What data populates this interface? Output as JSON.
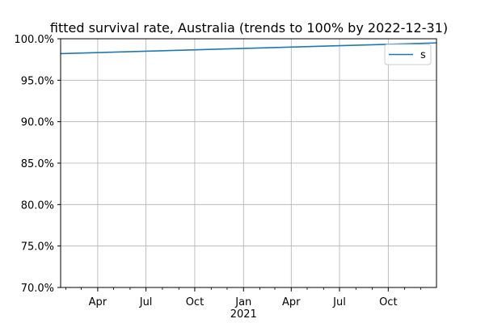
{
  "chart_data": {
    "type": "line",
    "title": "fitted survival rate, Australia (trends to 100% by 2022-12-31)",
    "xlabel": "",
    "ylabel": "",
    "x_range": [
      "2020-01-22",
      "2021-12-31"
    ],
    "ylim": [
      70.0,
      100.0
    ],
    "y_ticks": [
      70.0,
      75.0,
      80.0,
      85.0,
      90.0,
      95.0,
      100.0
    ],
    "y_tick_labels": [
      "70.0%",
      "75.0%",
      "80.0%",
      "85.0%",
      "90.0%",
      "95.0%",
      "100.0%"
    ],
    "x_major_ticks": [
      {
        "date": "2020-04-01",
        "label": "Apr"
      },
      {
        "date": "2020-07-01",
        "label": "Jul"
      },
      {
        "date": "2020-10-01",
        "label": "Oct"
      },
      {
        "date": "2021-01-01",
        "label": "Jan"
      },
      {
        "date": "2021-04-01",
        "label": "Apr"
      },
      {
        "date": "2021-07-01",
        "label": "Jul"
      },
      {
        "date": "2021-10-01",
        "label": "Oct"
      }
    ],
    "x_year_label": {
      "date": "2021-01-01",
      "label": "2021"
    },
    "x_minor_ticks": [
      "2020-02-01",
      "2020-03-01",
      "2020-05-01",
      "2020-06-01",
      "2020-08-01",
      "2020-09-01",
      "2020-11-01",
      "2020-12-01",
      "2021-02-01",
      "2021-03-01",
      "2021-05-01",
      "2021-06-01",
      "2021-08-01",
      "2021-09-01",
      "2021-11-01",
      "2021-12-01"
    ],
    "grid": true,
    "legend_position": "top-right",
    "series": [
      {
        "name": "s",
        "color": "#1f77b4",
        "x": [
          "2020-01-22",
          "2021-12-31"
        ],
        "y": [
          98.2,
          99.5
        ]
      }
    ]
  }
}
